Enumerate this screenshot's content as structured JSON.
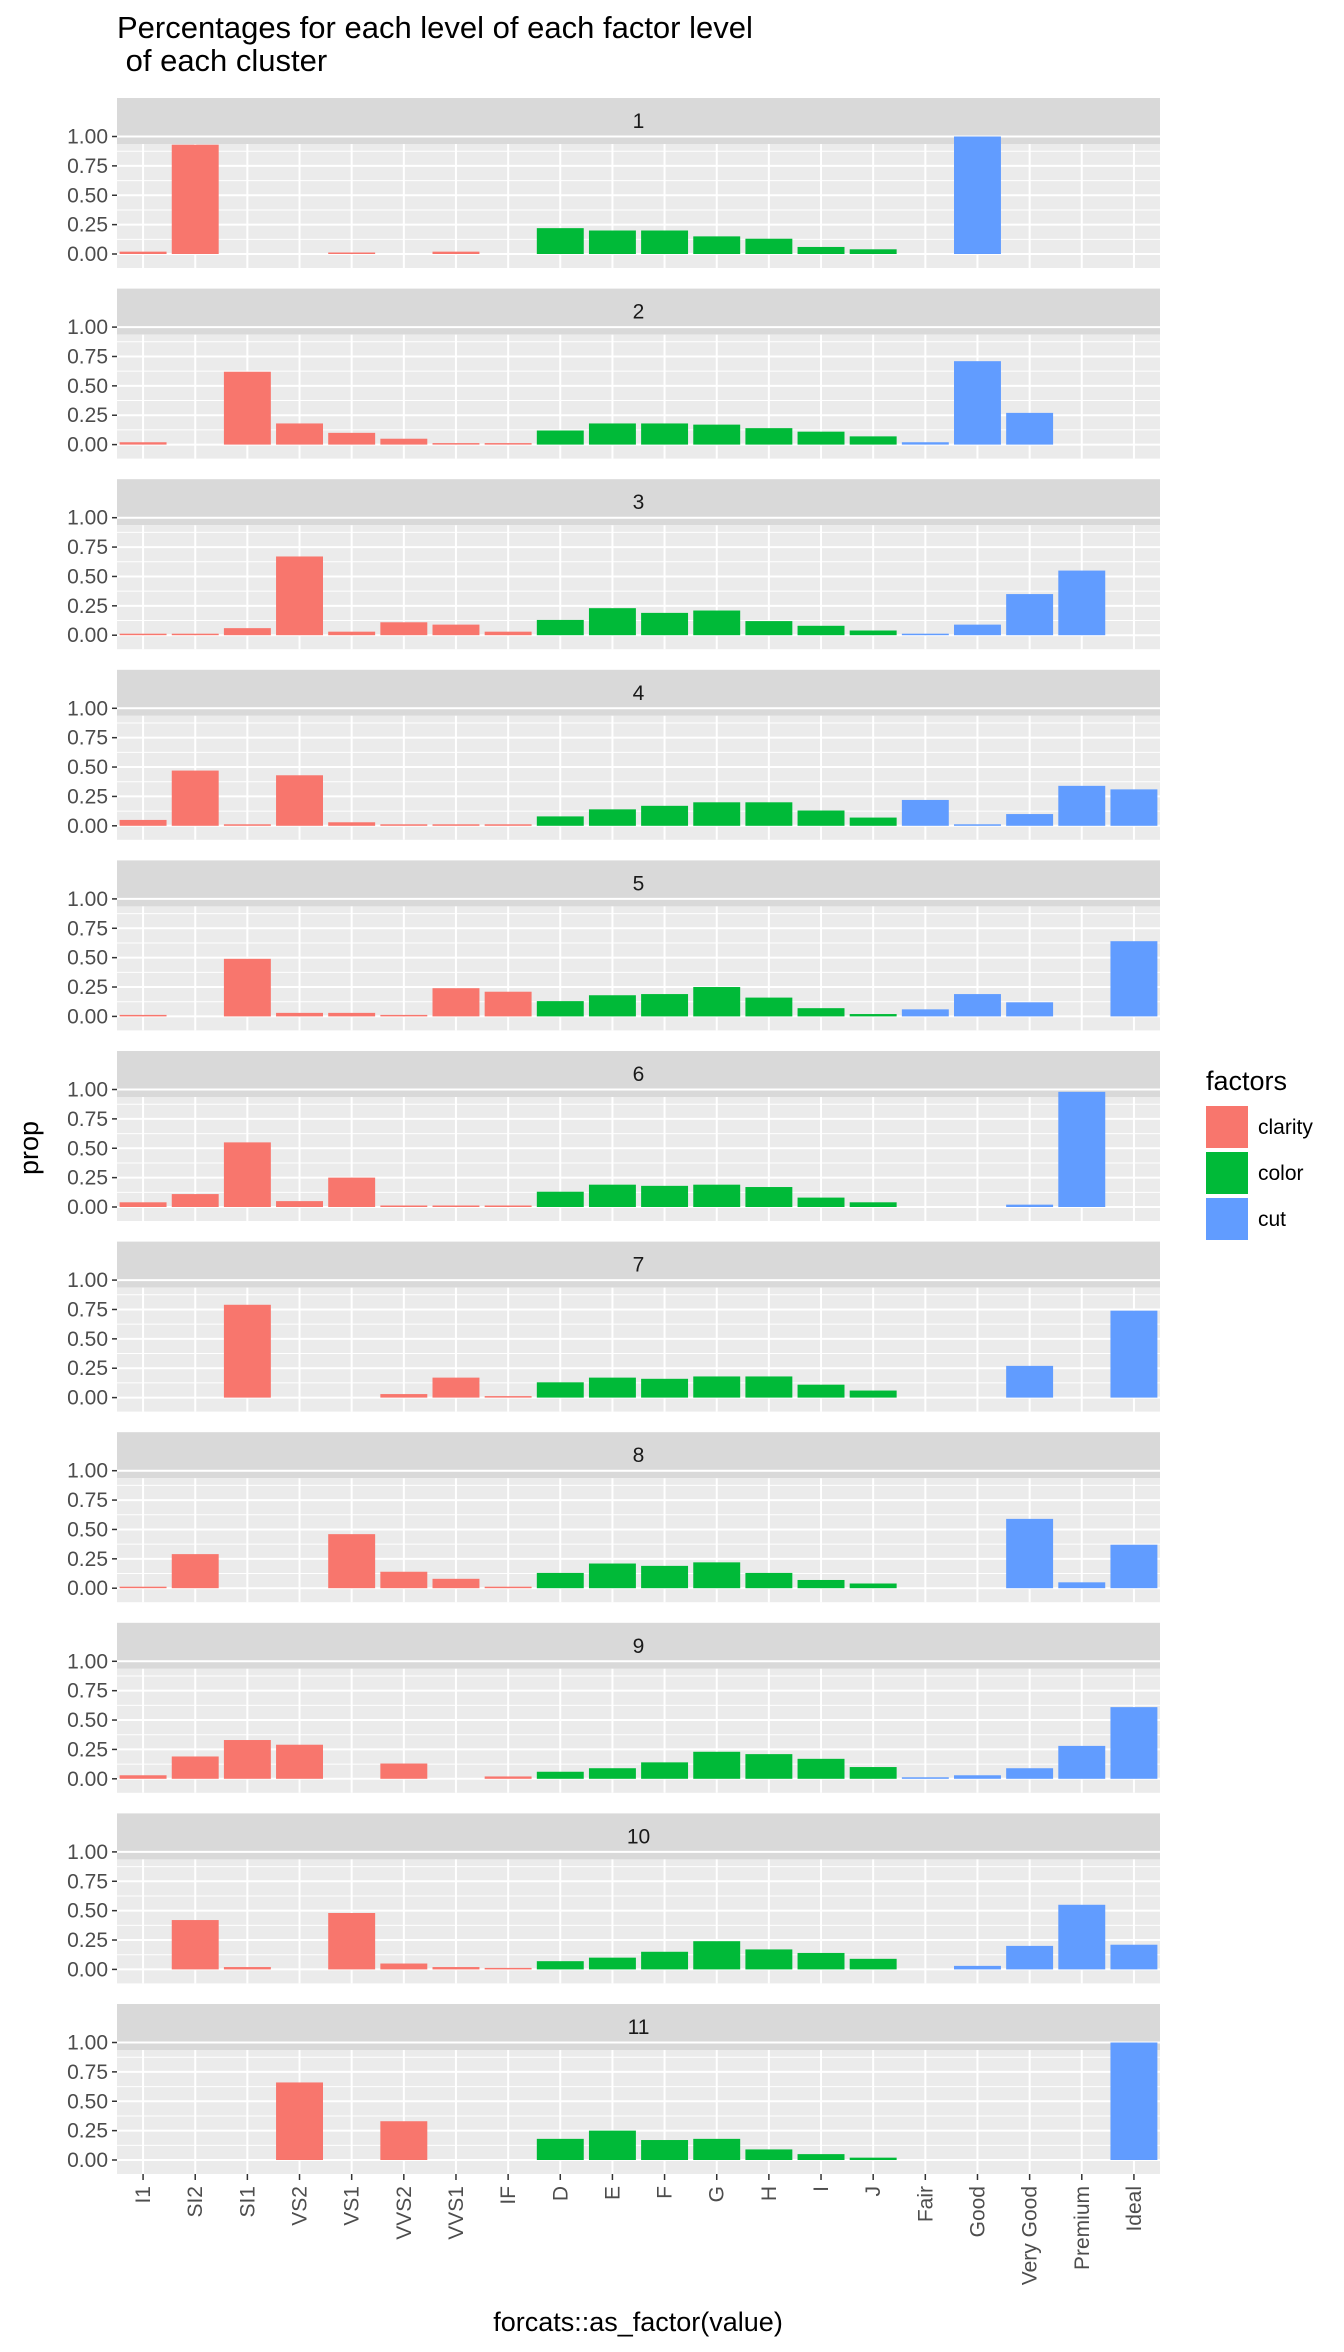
{
  "colors": {
    "clarity": "#F8766D",
    "color": "#00BA38",
    "cut": "#619CFF",
    "panel_bg": "#EBEBEB",
    "strip_bg": "#D9D9D9",
    "grid": "#FFFFFF",
    "tick": "#333333"
  },
  "chart_data": {
    "type": "bar",
    "title": "Percentages for each level of each factor level\n of each cluster",
    "xlabel": "forcats::as_factor(value)",
    "ylabel": "prop",
    "ylim": [
      0,
      1
    ],
    "yticks": [
      "0.00",
      "0.25",
      "0.50",
      "0.75",
      "1.00"
    ],
    "grid": true,
    "facet_by": "cluster",
    "categories": [
      "I1",
      "SI2",
      "SI1",
      "VS2",
      "VS1",
      "VVS2",
      "VVS1",
      "IF",
      "D",
      "E",
      "F",
      "G",
      "H",
      "I",
      "J",
      "Fair",
      "Good",
      "Very Good",
      "Premium",
      "Ideal"
    ],
    "category_factor": [
      "clarity",
      "clarity",
      "clarity",
      "clarity",
      "clarity",
      "clarity",
      "clarity",
      "clarity",
      "color",
      "color",
      "color",
      "color",
      "color",
      "color",
      "color",
      "cut",
      "cut",
      "cut",
      "cut",
      "cut"
    ],
    "legend": {
      "title": "factors",
      "placement": "right",
      "entries": [
        "clarity",
        "color",
        "cut"
      ]
    },
    "panels": [
      {
        "label": "1",
        "values": [
          0.02,
          0.93,
          0,
          0,
          0.01,
          0,
          0.02,
          0,
          0.22,
          0.2,
          0.2,
          0.15,
          0.13,
          0.06,
          0.04,
          0,
          1.0,
          0,
          0,
          0
        ]
      },
      {
        "label": "2",
        "values": [
          0.02,
          0,
          0.62,
          0.18,
          0.1,
          0.05,
          0.01,
          0.01,
          0.12,
          0.18,
          0.18,
          0.17,
          0.14,
          0.11,
          0.07,
          0.02,
          0.71,
          0.27,
          0,
          0
        ]
      },
      {
        "label": "3",
        "values": [
          0.01,
          0.01,
          0.06,
          0.67,
          0.03,
          0.11,
          0.09,
          0.03,
          0.13,
          0.23,
          0.19,
          0.21,
          0.12,
          0.08,
          0.04,
          0.01,
          0.09,
          0.35,
          0.55,
          0
        ]
      },
      {
        "label": "4",
        "values": [
          0.05,
          0.47,
          0.01,
          0.43,
          0.03,
          0.01,
          0.01,
          0.01,
          0.08,
          0.14,
          0.17,
          0.2,
          0.2,
          0.13,
          0.07,
          0.22,
          0.01,
          0.1,
          0.34,
          0.31
        ]
      },
      {
        "label": "5",
        "values": [
          0.01,
          0,
          0.49,
          0.03,
          0.03,
          0.01,
          0.24,
          0.21,
          0.13,
          0.18,
          0.19,
          0.25,
          0.16,
          0.07,
          0.02,
          0.06,
          0.19,
          0.12,
          0,
          0.64
        ]
      },
      {
        "label": "6",
        "values": [
          0.04,
          0.11,
          0.55,
          0.05,
          0.25,
          0.01,
          0.01,
          0.01,
          0.13,
          0.19,
          0.18,
          0.19,
          0.17,
          0.08,
          0.04,
          0,
          0,
          0.02,
          0.98,
          0
        ]
      },
      {
        "label": "7",
        "values": [
          0,
          0,
          0.79,
          0,
          0,
          0.03,
          0.17,
          0.01,
          0.13,
          0.17,
          0.16,
          0.18,
          0.18,
          0.11,
          0.06,
          0,
          0,
          0.27,
          0,
          0.74
        ]
      },
      {
        "label": "8",
        "values": [
          0.01,
          0.29,
          0,
          0,
          0.46,
          0.14,
          0.08,
          0.01,
          0.13,
          0.21,
          0.19,
          0.22,
          0.13,
          0.07,
          0.04,
          0,
          0,
          0.59,
          0.05,
          0.37
        ]
      },
      {
        "label": "9",
        "values": [
          0.03,
          0.19,
          0.33,
          0.29,
          0,
          0.13,
          0,
          0.02,
          0.06,
          0.09,
          0.14,
          0.23,
          0.21,
          0.17,
          0.1,
          0.01,
          0.03,
          0.09,
          0.28,
          0.61
        ]
      },
      {
        "label": "10",
        "values": [
          0,
          0.42,
          0.02,
          0,
          0.48,
          0.05,
          0.02,
          0.01,
          0.07,
          0.1,
          0.15,
          0.24,
          0.17,
          0.14,
          0.09,
          0,
          0.03,
          0.2,
          0.55,
          0.21
        ]
      },
      {
        "label": "11",
        "values": [
          0,
          0,
          0,
          0.66,
          0,
          0.33,
          0,
          0,
          0.18,
          0.25,
          0.17,
          0.18,
          0.09,
          0.05,
          0.02,
          0,
          0,
          0,
          0,
          1.0
        ]
      }
    ]
  }
}
